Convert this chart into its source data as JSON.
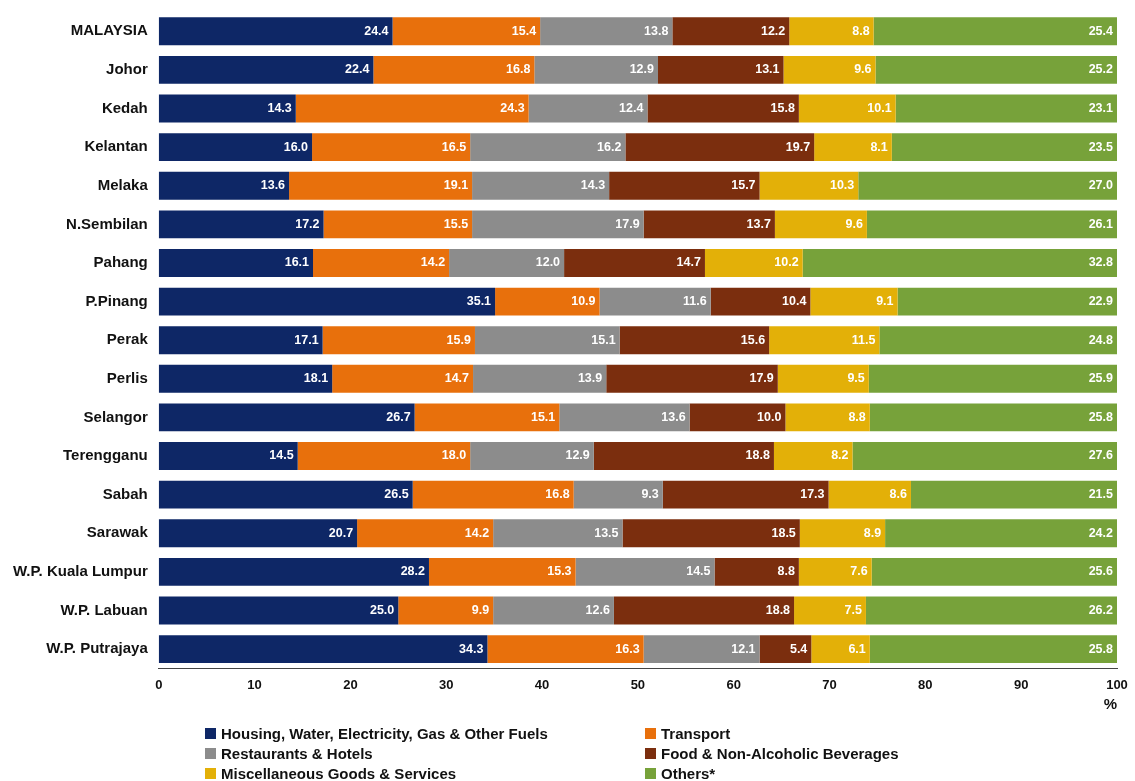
{
  "chart_data": {
    "type": "bar",
    "orientation": "horizontal",
    "stacked": true,
    "xlabel": "%",
    "categories": [
      "MALAYSIA",
      "Johor",
      "Kedah",
      "Kelantan",
      "Melaka",
      "N.Sembilan",
      "Pahang",
      "P.Pinang",
      "Perak",
      "Perlis",
      "Selangor",
      "Terengganu",
      "Sabah",
      "Sarawak",
      "W.P. Kuala Lumpur",
      "W.P. Labuan",
      "W.P. Putrajaya"
    ],
    "series": [
      {
        "name": "Housing, Water, Electricity, Gas & Other Fuels",
        "color": "#0e2766",
        "values": [
          24.4,
          22.4,
          14.3,
          16.0,
          13.6,
          17.2,
          16.1,
          35.1,
          17.1,
          18.1,
          26.7,
          14.5,
          26.5,
          20.7,
          28.2,
          25.0,
          34.3
        ],
        "value_labels": [
          "24.4",
          "22.4",
          "14.3",
          "16.0",
          "13.6",
          "17.2",
          "16.1",
          "35.1",
          "17.1",
          "18.1",
          "26.7",
          "14.5",
          "26.5",
          "20.7",
          "28.2",
          "25.0",
          "34.3"
        ]
      },
      {
        "name": "Transport",
        "color": "#e8700c",
        "values": [
          15.4,
          16.8,
          24.3,
          16.5,
          19.1,
          15.5,
          14.2,
          10.9,
          15.9,
          14.7,
          15.1,
          18.0,
          16.8,
          14.2,
          15.3,
          9.9,
          16.3
        ],
        "value_labels": [
          "15.4",
          "16.8",
          "24.3",
          "16.5",
          "19.1",
          "15.5",
          "14.2",
          "10.9",
          "15.9",
          "14.7",
          "15.1",
          "18.0",
          "16.8",
          "14.2",
          "15.3",
          "9.9",
          "16.3"
        ]
      },
      {
        "name": "Restaurants & Hotels",
        "color": "#8c8c8c",
        "values": [
          13.8,
          12.9,
          12.4,
          16.2,
          14.3,
          17.9,
          12.0,
          11.6,
          15.1,
          13.9,
          13.6,
          12.9,
          9.3,
          13.5,
          14.5,
          12.6,
          12.1
        ],
        "value_labels": [
          "13.8",
          "12.9",
          "12.4",
          "16.2",
          "14.3",
          "17.9",
          "12.0",
          "11.6",
          "15.1",
          "13.9",
          "13.6",
          "12.9",
          "9.3",
          "13.5",
          "14.5",
          "12.6",
          "12.1"
        ]
      },
      {
        "name": "Food & Non-Alcoholic Beverages",
        "color": "#7b2e0e",
        "values": [
          12.2,
          13.1,
          15.8,
          19.7,
          15.7,
          13.7,
          14.7,
          10.4,
          15.6,
          17.9,
          10.0,
          18.8,
          17.3,
          18.5,
          8.8,
          18.8,
          5.4
        ],
        "value_labels": [
          "12.2",
          "13.1",
          "15.8",
          "19.7",
          "15.7",
          "13.7",
          "14.7",
          "10.4",
          "15.6",
          "17.9",
          "10.0",
          "18.8",
          "17.3",
          "18.5",
          "8.8",
          "18.8",
          "5.4"
        ]
      },
      {
        "name": "Miscellaneous Goods & Services",
        "color": "#e3b008",
        "values": [
          8.8,
          9.6,
          10.1,
          8.1,
          10.3,
          9.6,
          10.2,
          9.1,
          11.5,
          9.5,
          8.8,
          8.2,
          8.6,
          8.9,
          7.6,
          7.5,
          6.1
        ],
        "value_labels": [
          "8.8",
          "9.6",
          "10.1",
          "8.1",
          "10.3",
          "9.6",
          "10.2",
          "9.1",
          "11.5",
          "9.5",
          "8.8",
          "8.2",
          "8.6",
          "8.9",
          "7.6",
          "7.5",
          "6.1"
        ]
      },
      {
        "name": "Others*",
        "color": "#77a23a",
        "values": [
          25.4,
          25.2,
          23.1,
          23.5,
          27.0,
          26.1,
          32.8,
          22.9,
          24.8,
          25.9,
          25.8,
          27.6,
          21.5,
          24.2,
          25.6,
          26.2,
          25.8
        ],
        "value_labels": [
          "25.4",
          "25.2",
          "23.1",
          "23.5",
          "27.0",
          "26.1",
          "32.8",
          "22.9",
          "24.8",
          "25.9",
          "25.8",
          "27.6",
          "21.5",
          "24.2",
          "25.6",
          "26.2",
          "25.8"
        ]
      }
    ],
    "xlim": [
      0,
      100
    ],
    "xticks": [
      0,
      10,
      20,
      30,
      40,
      50,
      60,
      70,
      80,
      90,
      100
    ],
    "grid": false,
    "legend": "bottom"
  }
}
